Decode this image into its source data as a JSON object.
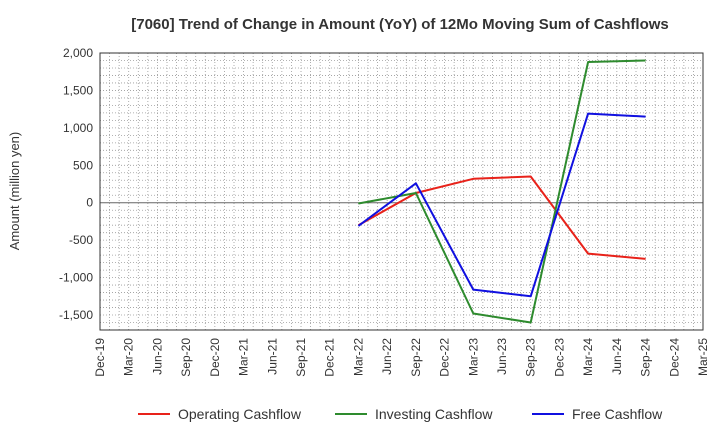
{
  "chart_data": {
    "type": "line",
    "title": "[7060]  Trend of Change in Amount (YoY) of 12Mo Moving Sum of Cashflows",
    "xlabel": "",
    "ylabel": "Amount (million yen)",
    "ylim": [
      -1700,
      2000
    ],
    "yticks": [
      -1500,
      -1000,
      -500,
      0,
      500,
      1000,
      1500,
      2000
    ],
    "ytick_labels": [
      "-1,500",
      "-1,000",
      "-500",
      "0",
      "500",
      "1,000",
      "1,500",
      "2,000"
    ],
    "categories": [
      "Dec-19",
      "Mar-20",
      "Jun-20",
      "Sep-20",
      "Dec-20",
      "Mar-21",
      "Jun-21",
      "Sep-21",
      "Dec-21",
      "Mar-22",
      "Jun-22",
      "Sep-22",
      "Dec-22",
      "Mar-23",
      "Jun-23",
      "Sep-23",
      "Dec-23",
      "Mar-24",
      "Jun-24",
      "Sep-24",
      "Dec-24",
      "Mar-25"
    ],
    "grid": true,
    "legend_position": "bottom",
    "series": [
      {
        "name": "Operating Cashflow",
        "color": "#e8221a",
        "values": [
          null,
          null,
          null,
          null,
          null,
          null,
          null,
          null,
          null,
          -300,
          null,
          130,
          null,
          320,
          null,
          350,
          null,
          -680,
          null,
          -750,
          null,
          null
        ]
      },
      {
        "name": "Investing Cashflow",
        "color": "#2e8b2e",
        "values": [
          null,
          null,
          null,
          null,
          null,
          null,
          null,
          null,
          null,
          -10,
          null,
          130,
          null,
          -1480,
          null,
          -1600,
          null,
          1880,
          null,
          1900,
          null,
          null
        ]
      },
      {
        "name": "Free Cashflow",
        "color": "#1010e0",
        "values": [
          null,
          null,
          null,
          null,
          null,
          null,
          null,
          null,
          null,
          -310,
          null,
          260,
          null,
          -1160,
          null,
          -1250,
          null,
          1190,
          null,
          1150,
          null,
          null
        ]
      }
    ]
  }
}
